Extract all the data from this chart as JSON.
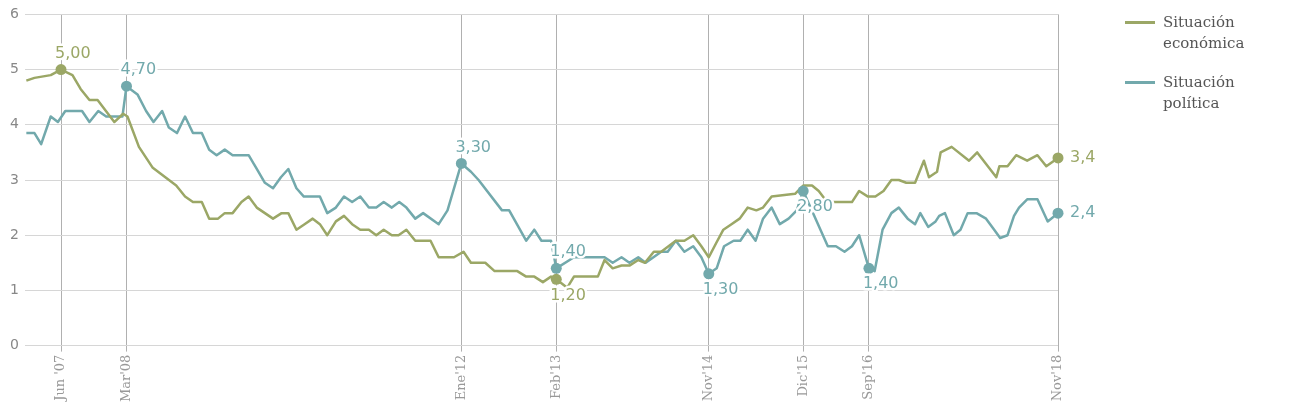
{
  "chart_data": {
    "type": "line",
    "series": [
      {
        "name": "Situación económica",
        "color": "#9ba766",
        "x": [
          "2007-01-07",
          "2007-02-10",
          "2007-04-19",
          "2007-06",
          "2007-07-19",
          "2007-08-22",
          "2007-09-28",
          "2007-11-01",
          "2008-01-10",
          "2008-02-16",
          "2008-03-05",
          "2008-04-22",
          "2008-06-19",
          "2008-09-25",
          "2008-11-01",
          "2008-12-04",
          "2009-01-10",
          "2009-02-10",
          "2009-03-19",
          "2009-04-16",
          "2009-05-19",
          "2009-06-25",
          "2009-07-25",
          "2009-08-28",
          "2009-10-01",
          "2009-11-04",
          "2009-12-10",
          "2010-01-07",
          "2010-02-10",
          "2010-03-16",
          "2010-04-19",
          "2010-05-19",
          "2010-06-19",
          "2010-07-25",
          "2010-08-28",
          "2010-10-01",
          "2010-11-04",
          "2010-12-10",
          "2011-01-10",
          "2011-02-10",
          "2011-03-16",
          "2011-04-13",
          "2011-05-16",
          "2011-06-22",
          "2011-08-25",
          "2011-09-28",
          "2011-12-01",
          "2012-01-10",
          "2012-02-10",
          "2012-04-10",
          "2012-05-19",
          "2012-08-22",
          "2012-09-28",
          "2012-11-01",
          "2012-12-07",
          "2013-01-10",
          "2013-02",
          "2013-03-19",
          "2013-04-16",
          "2013-07-25",
          "2013-08-22",
          "2013-09-25",
          "2013-11-01",
          "2013-12-04",
          "2014-01-10",
          "2014-02-07",
          "2014-03-16",
          "2014-04-16",
          "2014-06-16",
          "2014-07-22",
          "2014-08-28",
          "2014-10-01",
          "2014-11-01",
          "2014-12-01",
          "2015-01-01",
          "2015-02-04",
          "2015-03-10",
          "2015-04-13",
          "2015-05-19",
          "2015-06-16",
          "2015-07-22",
          "2015-10-28",
          "2015-12-01",
          "2016-01-07",
          "2016-02-04",
          "2016-03-10",
          "2016-06-22",
          "2016-07-22",
          "2016-08-28",
          "2016-09-28",
          "2016-11-01",
          "2016-12-04",
          "2017-01-04",
          "2017-02-04",
          "2017-03-13",
          "2017-04-19",
          "2017-05-10",
          "2017-06-13",
          "2017-06-28",
          "2017-08-13",
          "2017-10-25",
          "2017-11-28",
          "2018-02-16",
          "2018-03-01",
          "2018-04-04",
          "2018-05-10",
          "2018-06-25",
          "2018-08-07",
          "2018-09-13",
          "2018-11"
        ],
        "values": [
          4.8,
          4.85,
          4.9,
          5.0,
          4.9,
          4.65,
          4.45,
          4.45,
          4.05,
          4.2,
          4.15,
          3.6,
          3.22,
          2.9,
          2.7,
          2.6,
          2.6,
          2.3,
          2.3,
          2.4,
          2.4,
          2.6,
          2.7,
          2.5,
          2.4,
          2.3,
          2.4,
          2.4,
          2.1,
          2.2,
          2.3,
          2.2,
          2.0,
          2.25,
          2.35,
          2.2,
          2.1,
          2.1,
          2.0,
          2.1,
          2.0,
          2.0,
          2.1,
          1.9,
          1.9,
          1.6,
          1.6,
          1.7,
          1.5,
          1.5,
          1.35,
          1.35,
          1.25,
          1.25,
          1.15,
          1.25,
          1.2,
          1.05,
          1.25,
          1.25,
          1.55,
          1.4,
          1.45,
          1.45,
          1.55,
          1.5,
          1.7,
          1.7,
          1.9,
          1.9,
          2.0,
          1.8,
          1.6,
          1.85,
          2.1,
          2.2,
          2.3,
          2.5,
          2.45,
          2.5,
          2.7,
          2.75,
          2.9,
          2.9,
          2.8,
          2.6,
          2.6,
          2.8,
          2.7,
          2.7,
          2.8,
          3.0,
          3.0,
          2.95,
          2.95,
          3.35,
          3.05,
          3.15,
          3.5,
          3.6,
          3.35,
          3.5,
          3.05,
          3.25,
          3.25,
          3.45,
          3.35,
          3.45,
          3.25,
          3.4
        ]
      },
      {
        "name": "Situación política",
        "color": "#72a9ac",
        "x": [
          "2007-01-07",
          "2007-02-10",
          "2007-03-10",
          "2007-04-19",
          "2007-05-19",
          "2007-06-19",
          "2007-08-28",
          "2007-09-28",
          "2007-11-04",
          "2007-12-07",
          "2008-02-13",
          "2008-03",
          "2008-04-16",
          "2008-05-22",
          "2008-06-22",
          "2008-07-28",
          "2008-08-25",
          "2008-09-28",
          "2008-11-01",
          "2008-12-04",
          "2009-01-10",
          "2009-02-10",
          "2009-03-13",
          "2009-04-16",
          "2009-05-19",
          "2009-07-25",
          "2009-08-28",
          "2009-10-01",
          "2009-11-04",
          "2009-12-07",
          "2010-01-07",
          "2010-02-10",
          "2010-03-13",
          "2010-05-19",
          "2010-06-19",
          "2010-07-25",
          "2010-08-28",
          "2010-10-01",
          "2010-11-04",
          "2010-12-10",
          "2011-01-10",
          "2011-02-10",
          "2011-03-16",
          "2011-04-16",
          "2011-05-16",
          "2011-06-22",
          "2011-07-25",
          "2011-09-28",
          "2011-11-04",
          "2012-01",
          "2012-02-10",
          "2012-03-13",
          "2012-06-19",
          "2012-07-19",
          "2012-09-28",
          "2012-11-01",
          "2012-12-01",
          "2013-01-10",
          "2013-02",
          "2013-04-16",
          "2013-08-22",
          "2013-09-25",
          "2013-11-01",
          "2013-12-04",
          "2014-01-10",
          "2014-02-10",
          "2014-04-16",
          "2014-05-13",
          "2014-06-16",
          "2014-07-22",
          "2014-08-28",
          "2014-10-01",
          "2014-11",
          "2014-12-04",
          "2015-01-04",
          "2015-02-13",
          "2015-03-13",
          "2015-04-13",
          "2015-05-16",
          "2015-06-16",
          "2015-07-22",
          "2015-08-25",
          "2015-10-01",
          "2015-11-04",
          "2015-12",
          "2016-03-13",
          "2016-04-16",
          "2016-05-22",
          "2016-06-22",
          "2016-07-22",
          "2016-09",
          "2016-09-25",
          "2016-10-28",
          "2016-12-04",
          "2017-01-04",
          "2017-02-10",
          "2017-03-13",
          "2017-04-04",
          "2017-05-07",
          "2017-06-07",
          "2017-06-22",
          "2017-07-16",
          "2017-08-22",
          "2017-09-19",
          "2017-10-19",
          "2017-11-25",
          "2018-01-04",
          "2018-02-07",
          "2018-03-04",
          "2018-04-04",
          "2018-05-01",
          "2018-05-22",
          "2018-06-25",
          "2018-08-07",
          "2018-09-19",
          "2018-11"
        ],
        "values": [
          3.85,
          3.85,
          3.65,
          4.15,
          4.05,
          4.25,
          4.25,
          4.05,
          4.25,
          4.15,
          4.15,
          4.7,
          4.55,
          4.25,
          4.05,
          4.25,
          3.95,
          3.85,
          4.15,
          3.85,
          3.85,
          3.55,
          3.45,
          3.55,
          3.45,
          3.45,
          3.2,
          2.95,
          2.85,
          3.05,
          3.2,
          2.85,
          2.7,
          2.7,
          2.4,
          2.5,
          2.7,
          2.6,
          2.7,
          2.5,
          2.5,
          2.6,
          2.5,
          2.6,
          2.5,
          2.3,
          2.4,
          2.2,
          2.45,
          3.3,
          3.15,
          3.0,
          2.45,
          2.45,
          1.9,
          2.1,
          1.9,
          1.9,
          1.4,
          1.6,
          1.6,
          1.5,
          1.6,
          1.5,
          1.6,
          1.5,
          1.7,
          1.7,
          1.9,
          1.7,
          1.8,
          1.6,
          1.3,
          1.4,
          1.8,
          1.9,
          1.9,
          2.1,
          1.9,
          2.3,
          2.5,
          2.2,
          2.3,
          2.45,
          2.8,
          1.8,
          1.8,
          1.7,
          1.8,
          2.0,
          1.4,
          1.35,
          2.1,
          2.4,
          2.5,
          2.3,
          2.2,
          2.4,
          2.15,
          2.25,
          2.35,
          2.4,
          2.0,
          2.1,
          2.4,
          2.4,
          2.3,
          2.1,
          1.95,
          2.0,
          2.35,
          2.5,
          2.65,
          2.65,
          2.25,
          2.4
        ]
      }
    ],
    "xlim": [
      "2007-01",
      "2018-11"
    ],
    "xticks": [
      {
        "value": "2007-06",
        "label": "Jun '07"
      },
      {
        "value": "2008-03",
        "label": "Mar'08"
      },
      {
        "value": "2012-01",
        "label": "Ene'12"
      },
      {
        "value": "2013-02",
        "label": "Feb'13"
      },
      {
        "value": "2014-11",
        "label": "Nov'14"
      },
      {
        "value": "2015-12",
        "label": "Dic'15"
      },
      {
        "value": "2016-09",
        "label": "Sep'16"
      },
      {
        "value": "2018-11",
        "label": "Nov'18"
      }
    ],
    "ylim": [
      0,
      6
    ],
    "yticks": [
      0,
      1,
      2,
      3,
      4,
      5,
      6
    ],
    "grid": true,
    "legend": "top right",
    "line_style": "solid",
    "annotations": [
      {
        "text": "5,00",
        "x": "2007-06",
        "y": 5.0
      },
      {
        "text": "4,70",
        "x": "2008-03",
        "y": 4.7
      },
      {
        "text": "3,30",
        "x": "2012-01",
        "y": 3.3
      },
      {
        "text": "1,40",
        "x": "2013-02",
        "y": 1.4
      },
      {
        "text": "1,20",
        "x": "2013-02",
        "y": 1.2
      },
      {
        "text": "1,30",
        "x": "2014-11",
        "y": 1.3
      },
      {
        "text": "2,80",
        "x": "2015-12",
        "y": 2.8
      },
      {
        "text": "1,40",
        "x": "2016-09",
        "y": 1.4
      },
      {
        "text": "3,4",
        "x": "2018-11",
        "y": 3.4
      },
      {
        "text": "2,4",
        "x": "2018-11",
        "y": 2.4
      }
    ]
  }
}
